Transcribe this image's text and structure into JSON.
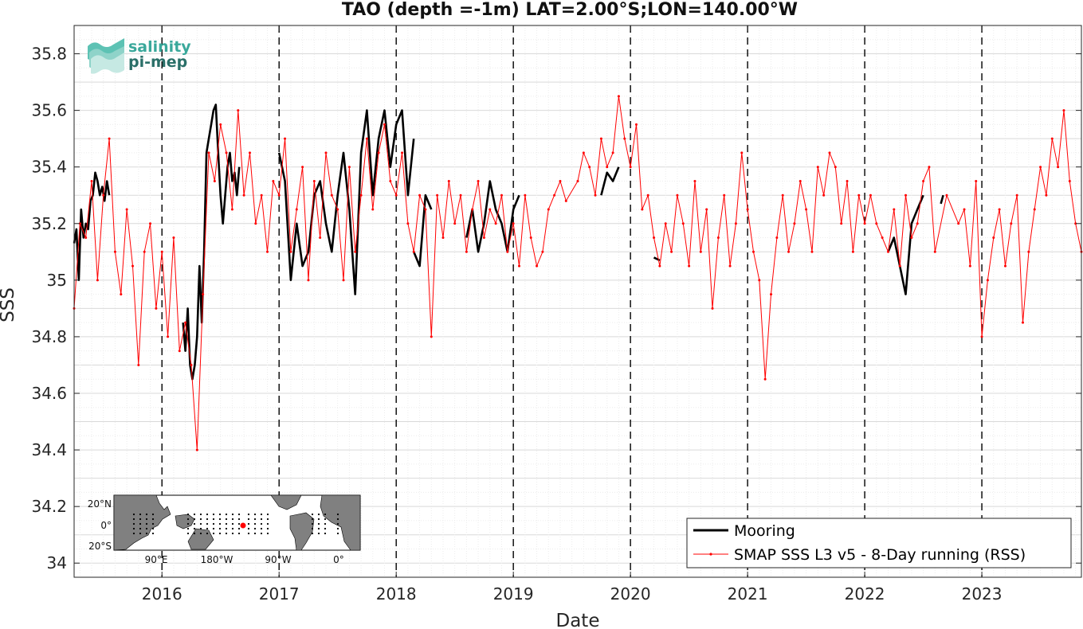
{
  "chart_data": {
    "type": "line",
    "title": "TAO (depth =-1m) LAT=2.00°S;LON=140.00°W",
    "xlabel": "Date",
    "ylabel": "SSS",
    "xlim": [
      2015.25,
      2023.85
    ],
    "ylim": [
      33.95,
      35.9
    ],
    "yticks": [
      34,
      34.2,
      34.4,
      34.6,
      34.8,
      35,
      35.2,
      35.4,
      35.6,
      35.8
    ],
    "ytick_labels": [
      "34",
      "34.2",
      "34.4",
      "34.6",
      "34.8",
      "35",
      "35.2",
      "35.4",
      "35.6",
      "35.8"
    ],
    "xticks": [
      2016,
      2017,
      2018,
      2019,
      2020,
      2021,
      2022,
      2023
    ],
    "xtick_labels": [
      "2016",
      "2017",
      "2018",
      "2019",
      "2020",
      "2021",
      "2022",
      "2023"
    ],
    "year_lines": [
      2016,
      2017,
      2018,
      2019,
      2020,
      2021,
      2022,
      2023
    ],
    "grid": true,
    "legend_position": "bottom-right",
    "series": [
      {
        "name": "Mooring",
        "color": "#000000",
        "style": "thick-line",
        "segments": [
          {
            "x": [
              2015.25,
              2015.27,
              2015.29,
              2015.31,
              2015.33,
              2015.35,
              2015.37,
              2015.39,
              2015.41,
              2015.43,
              2015.45,
              2015.47,
              2015.49,
              2015.51,
              2015.53,
              2015.55
            ],
            "y": [
              35.13,
              35.18,
              35.0,
              35.25,
              35.15,
              35.2,
              35.18,
              35.28,
              35.3,
              35.38,
              35.35,
              35.3,
              35.33,
              35.28,
              35.35,
              35.3
            ]
          },
          {
            "x": [
              2016.18,
              2016.2,
              2016.22,
              2016.24,
              2016.26,
              2016.28,
              2016.3,
              2016.32,
              2016.34,
              2016.36,
              2016.38,
              2016.4,
              2016.42,
              2016.44,
              2016.46,
              2016.48,
              2016.5,
              2016.52,
              2016.54,
              2016.56,
              2016.58,
              2016.6,
              2016.62,
              2016.64,
              2016.66
            ],
            "y": [
              34.85,
              34.75,
              34.9,
              34.7,
              34.65,
              34.7,
              34.8,
              35.05,
              34.85,
              35.1,
              35.45,
              35.5,
              35.55,
              35.6,
              35.62,
              35.45,
              35.3,
              35.2,
              35.3,
              35.4,
              35.45,
              35.35,
              35.38,
              35.3,
              35.4
            ]
          },
          {
            "x": [
              2017.0,
              2017.05,
              2017.1,
              2017.15,
              2017.2,
              2017.25,
              2017.3,
              2017.35,
              2017.4,
              2017.45,
              2017.5,
              2017.55,
              2017.6,
              2017.65,
              2017.7,
              2017.75,
              2017.8,
              2017.85,
              2017.9,
              2017.95,
              2018.0,
              2018.05,
              2018.1,
              2018.15
            ],
            "y": [
              35.45,
              35.35,
              35.0,
              35.2,
              35.05,
              35.1,
              35.3,
              35.35,
              35.2,
              35.1,
              35.3,
              35.45,
              35.25,
              34.95,
              35.45,
              35.6,
              35.3,
              35.5,
              35.6,
              35.4,
              35.55,
              35.6,
              35.3,
              35.5
            ]
          },
          {
            "x": [
              2018.15,
              2018.2,
              2018.25,
              2018.3
            ],
            "y": [
              35.1,
              35.05,
              35.3,
              35.25
            ]
          },
          {
            "x": [
              2018.6,
              2018.65,
              2018.7,
              2018.75,
              2018.8,
              2018.85,
              2018.9,
              2018.95,
              2019.0,
              2019.05
            ],
            "y": [
              35.15,
              35.25,
              35.1,
              35.2,
              35.35,
              35.25,
              35.2,
              35.1,
              35.25,
              35.3
            ]
          },
          {
            "x": [
              2019.75,
              2019.8,
              2019.85,
              2019.9
            ],
            "y": [
              35.3,
              35.38,
              35.35,
              35.4
            ]
          },
          {
            "x": [
              2020.2,
              2020.25
            ],
            "y": [
              35.08,
              35.07
            ]
          },
          {
            "x": [
              2022.2,
              2022.25,
              2022.3,
              2022.35,
              2022.4,
              2022.45,
              2022.5
            ],
            "y": [
              35.1,
              35.15,
              35.05,
              34.95,
              35.2,
              35.25,
              35.3
            ]
          },
          {
            "x": [
              2022.65,
              2022.67
            ],
            "y": [
              35.27,
              35.3
            ]
          }
        ]
      },
      {
        "name": "SMAP SSS L3 v5 - 8-Day running (RSS)",
        "color": "#ff0000",
        "style": "thin-line-dots",
        "x": [
          2015.25,
          2015.3,
          2015.35,
          2015.4,
          2015.45,
          2015.5,
          2015.55,
          2015.6,
          2015.65,
          2015.7,
          2015.75,
          2015.8,
          2015.85,
          2015.9,
          2015.95,
          2016.0,
          2016.05,
          2016.1,
          2016.15,
          2016.2,
          2016.25,
          2016.3,
          2016.35,
          2016.4,
          2016.45,
          2016.5,
          2016.55,
          2016.6,
          2016.65,
          2016.7,
          2016.75,
          2016.8,
          2016.85,
          2016.9,
          2016.95,
          2017.0,
          2017.05,
          2017.1,
          2017.15,
          2017.2,
          2017.25,
          2017.3,
          2017.35,
          2017.4,
          2017.45,
          2017.5,
          2017.55,
          2017.6,
          2017.65,
          2017.7,
          2017.75,
          2017.8,
          2017.85,
          2017.9,
          2017.95,
          2018.0,
          2018.05,
          2018.1,
          2018.15,
          2018.2,
          2018.25,
          2018.3,
          2018.35,
          2018.4,
          2018.45,
          2018.5,
          2018.55,
          2018.6,
          2018.65,
          2018.7,
          2018.75,
          2018.8,
          2018.85,
          2018.9,
          2018.95,
          2019.0,
          2019.05,
          2019.1,
          2019.15,
          2019.2,
          2019.25,
          2019.3,
          2019.35,
          2019.4,
          2019.45,
          2019.55,
          2019.6,
          2019.65,
          2019.7,
          2019.75,
          2019.8,
          2019.85,
          2019.9,
          2019.95,
          2020.0,
          2020.05,
          2020.1,
          2020.15,
          2020.2,
          2020.25,
          2020.3,
          2020.35,
          2020.4,
          2020.45,
          2020.5,
          2020.55,
          2020.6,
          2020.65,
          2020.7,
          2020.75,
          2020.8,
          2020.85,
          2020.9,
          2020.95,
          2021.0,
          2021.05,
          2021.1,
          2021.15,
          2021.2,
          2021.25,
          2021.3,
          2021.35,
          2021.4,
          2021.45,
          2021.5,
          2021.55,
          2021.6,
          2021.65,
          2021.7,
          2021.75,
          2021.8,
          2021.85,
          2021.9,
          2021.95,
          2022.0,
          2022.05,
          2022.1,
          2022.15,
          2022.2,
          2022.25,
          2022.3,
          2022.35,
          2022.4,
          2022.45,
          2022.5,
          2022.55,
          2022.6,
          2022.7,
          2022.8,
          2022.85,
          2022.9,
          2022.95,
          2023.0,
          2023.05,
          2023.1,
          2023.15,
          2023.2,
          2023.25,
          2023.3,
          2023.35,
          2023.4,
          2023.45,
          2023.5,
          2023.55,
          2023.6,
          2023.65,
          2023.7,
          2023.75,
          2023.8,
          2023.85
        ],
        "y": [
          34.9,
          35.2,
          35.15,
          35.35,
          35.0,
          35.3,
          35.5,
          35.1,
          34.95,
          35.25,
          35.05,
          34.7,
          35.1,
          35.2,
          34.9,
          35.1,
          34.8,
          35.15,
          34.75,
          34.85,
          34.7,
          34.4,
          34.95,
          35.45,
          35.35,
          35.55,
          35.45,
          35.25,
          35.6,
          35.3,
          35.45,
          35.2,
          35.3,
          35.1,
          35.35,
          35.3,
          35.5,
          35.1,
          35.25,
          35.4,
          35.0,
          35.35,
          35.15,
          35.45,
          35.3,
          35.25,
          35.0,
          35.4,
          35.1,
          35.3,
          35.5,
          35.25,
          35.45,
          35.55,
          35.35,
          35.3,
          35.45,
          35.2,
          35.1,
          35.3,
          35.25,
          34.8,
          35.3,
          35.15,
          35.35,
          35.2,
          35.3,
          35.1,
          35.25,
          35.35,
          35.15,
          35.25,
          35.2,
          35.3,
          35.1,
          35.2,
          35.05,
          35.3,
          35.15,
          35.05,
          35.1,
          35.25,
          35.3,
          35.35,
          35.28,
          35.35,
          35.45,
          35.4,
          35.3,
          35.5,
          35.4,
          35.45,
          35.65,
          35.5,
          35.4,
          35.55,
          35.25,
          35.3,
          35.15,
          35.05,
          35.2,
          35.1,
          35.3,
          35.2,
          35.05,
          35.35,
          35.1,
          35.25,
          34.9,
          35.15,
          35.3,
          35.05,
          35.2,
          35.45,
          35.25,
          35.1,
          35.0,
          34.65,
          34.95,
          35.15,
          35.3,
          35.1,
          35.2,
          35.35,
          35.25,
          35.1,
          35.4,
          35.3,
          35.45,
          35.4,
          35.2,
          35.35,
          35.1,
          35.3,
          35.2,
          35.3,
          35.2,
          35.15,
          35.1,
          35.25,
          35.05,
          35.3,
          35.15,
          35.2,
          35.35,
          35.4,
          35.1,
          35.3,
          35.2,
          35.25,
          35.05,
          35.35,
          34.8,
          35.0,
          35.15,
          35.25,
          35.05,
          35.2,
          35.3,
          34.85,
          35.1,
          35.25,
          35.4,
          35.3,
          35.5,
          35.4,
          35.6,
          35.35,
          35.2,
          35.1
        ]
      }
    ]
  },
  "logo": {
    "line1": "salinity",
    "line2": "pi-mep"
  },
  "inset_map": {
    "lat_labels": [
      "20°N",
      "0°",
      "20°S"
    ],
    "lon_labels": [
      "90°E",
      "180°W",
      "90°W",
      "0°"
    ],
    "marker_color": "#ff0000",
    "land_color": "#808080"
  }
}
